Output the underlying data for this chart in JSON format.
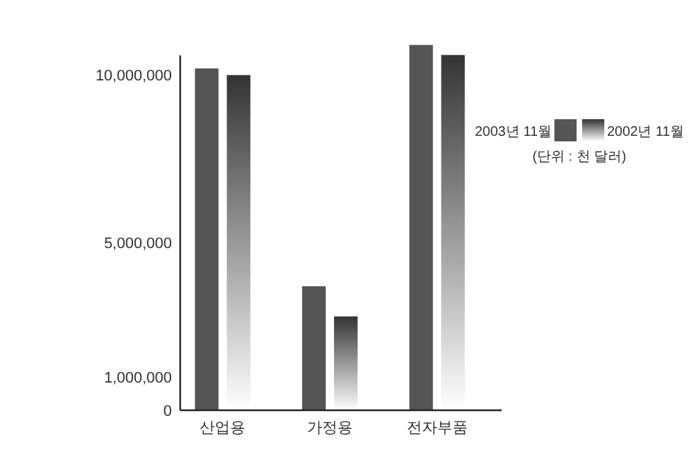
{
  "chart_data": {
    "type": "bar",
    "categories": [
      "산업용",
      "가정용",
      "전자부품"
    ],
    "series": [
      {
        "name": "2003년 11월",
        "color": "#555555",
        "values": [
          10200000,
          3700000,
          10900000
        ]
      },
      {
        "name": "2002년 11월",
        "color": "#333333",
        "values": [
          10000000,
          2800000,
          10600000
        ]
      }
    ],
    "ylim": [
      0,
      11000000
    ],
    "yticks": [
      0,
      {
        "value": 1000000,
        "label": "1,000,000"
      },
      {
        "value": 5000000,
        "label": "5,000,000"
      },
      {
        "value": 10000000,
        "label": "10,000,000"
      }
    ],
    "grid": false,
    "legend": "right",
    "annotations": [
      "(단위 : 천 달러)"
    ]
  }
}
